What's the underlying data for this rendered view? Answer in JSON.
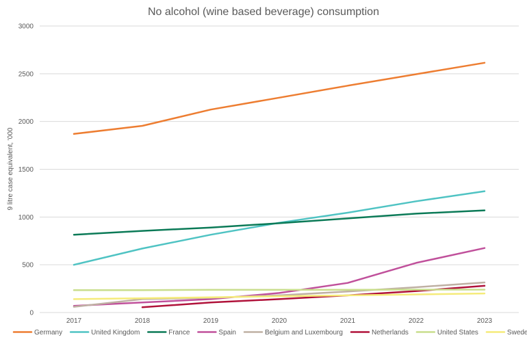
{
  "chart_data": {
    "type": "line",
    "title": "No alcohol (wine based beverage) consumption",
    "xlabel": "",
    "ylabel": "9 litre case equivalent, '000",
    "ylim": [
      0,
      3000
    ],
    "yticks": [
      "0",
      "500",
      "1000",
      "1500",
      "2000",
      "2500",
      "3000"
    ],
    "categories": [
      "2017",
      "2018",
      "2019",
      "2020",
      "2021",
      "2022",
      "2023"
    ],
    "grid": "horizontal",
    "legend_position": "bottom",
    "series": [
      {
        "name": "Germany",
        "color": "#ED7D31",
        "values": [
          1870,
          1955,
          2125,
          2250,
          2375,
          2495,
          2615
        ]
      },
      {
        "name": "United Kingdom",
        "color": "#4FC3C3",
        "values": [
          500,
          670,
          815,
          940,
          1045,
          1165,
          1270
        ]
      },
      {
        "name": "France",
        "color": "#0B7A57",
        "values": [
          815,
          855,
          890,
          935,
          985,
          1035,
          1070
        ]
      },
      {
        "name": "Spain",
        "color": "#C0509B",
        "values": [
          70,
          105,
          140,
          205,
          310,
          520,
          675
        ]
      },
      {
        "name": "Belgium and Luxembourg",
        "color": "#BFB0A3",
        "values": [
          60,
          140,
          155,
          180,
          220,
          265,
          315
        ]
      },
      {
        "name": "Netherlands",
        "color": "#B0123A",
        "values": [
          null,
          55,
          105,
          140,
          180,
          225,
          280
        ]
      },
      {
        "name": "United States",
        "color": "#C9DE8D",
        "values": [
          235,
          235,
          238,
          238,
          238,
          240,
          240
        ]
      },
      {
        "name": "Sweden",
        "color": "#F5EB7A",
        "values": [
          140,
          150,
          160,
          170,
          180,
          190,
          200
        ]
      }
    ]
  }
}
